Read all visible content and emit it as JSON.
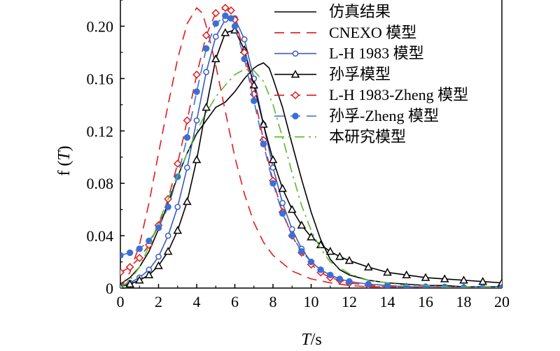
{
  "chart_data": {
    "type": "line",
    "xlabel": {
      "italic": "T",
      "rest": "/s"
    },
    "ylabel": {
      "pre": "f (",
      "italic": "T",
      "post": ")"
    },
    "xlim": [
      0,
      20
    ],
    "ylim": [
      0,
      0.22
    ],
    "xticks": [
      0,
      2,
      4,
      6,
      8,
      10,
      12,
      14,
      16,
      18,
      20
    ],
    "xtick_labels": [
      "0",
      "2",
      "4",
      "6",
      "8",
      "10",
      "12",
      "14",
      "16",
      "18",
      "20"
    ],
    "yticks": [
      0,
      0.04,
      0.08,
      0.12,
      0.16,
      0.2
    ],
    "ytick_labels": [
      "0",
      "0.04",
      "0.08",
      "0.12",
      "0.16",
      "0.20"
    ],
    "grid": false,
    "legend_position": "top-right",
    "series": [
      {
        "name": "仿真结果",
        "color": "#000000",
        "style": "solid",
        "marker": "none",
        "x": [
          0,
          0.5,
          1,
          1.5,
          2,
          2.5,
          3,
          3.5,
          4,
          4.5,
          5,
          5.5,
          6,
          6.5,
          7,
          7.2,
          7.5,
          7.8,
          8,
          8.5,
          9,
          9.5,
          10,
          10.5,
          11,
          11.5,
          12,
          13,
          14,
          15,
          16,
          17,
          18,
          19,
          20
        ],
        "y": [
          0.003,
          0.008,
          0.016,
          0.028,
          0.045,
          0.065,
          0.085,
          0.103,
          0.118,
          0.128,
          0.138,
          0.142,
          0.15,
          0.16,
          0.168,
          0.17,
          0.172,
          0.168,
          0.16,
          0.138,
          0.11,
          0.083,
          0.058,
          0.037,
          0.022,
          0.014,
          0.01,
          0.006,
          0.004,
          0.003,
          0.002,
          0.002,
          0.001,
          0.001,
          0.001
        ]
      },
      {
        "name": "CNEXO 模型",
        "color": "#e41a1c",
        "style": "dashed",
        "marker": "none",
        "x": [
          0,
          0.5,
          1,
          1.5,
          2,
          2.5,
          3,
          3.5,
          4,
          4.3,
          4.6,
          5,
          5.5,
          6,
          6.5,
          7,
          7.5,
          8,
          9,
          10,
          11,
          12,
          13,
          14,
          15,
          16,
          17,
          18,
          19,
          20
        ],
        "y": [
          0.0,
          0.012,
          0.033,
          0.065,
          0.103,
          0.14,
          0.175,
          0.202,
          0.214,
          0.21,
          0.195,
          0.17,
          0.135,
          0.1,
          0.072,
          0.05,
          0.035,
          0.025,
          0.013,
          0.007,
          0.004,
          0.002,
          0.001,
          0.001,
          0.0005,
          0.0003,
          0.0002,
          0.0001,
          0.0001,
          0.0
        ]
      },
      {
        "name": "L-H 1983 模型",
        "color": "#3b5bbf",
        "style": "solid",
        "marker": "circle-open",
        "x": [
          0,
          0.5,
          1,
          1.5,
          2,
          2.5,
          3,
          3.5,
          4,
          4.5,
          5,
          5.5,
          6,
          6.5,
          7,
          7.5,
          8,
          8.5,
          9,
          9.5,
          10,
          10.5,
          11,
          11.5,
          12,
          13,
          14,
          15,
          16,
          17,
          18,
          19,
          20
        ],
        "y": [
          0.002,
          0.004,
          0.008,
          0.014,
          0.024,
          0.04,
          0.062,
          0.092,
          0.128,
          0.165,
          0.192,
          0.205,
          0.206,
          0.19,
          0.16,
          0.125,
          0.092,
          0.065,
          0.045,
          0.03,
          0.02,
          0.014,
          0.01,
          0.007,
          0.005,
          0.003,
          0.002,
          0.001,
          0.001,
          0.001,
          0.0005,
          0.0003,
          0.0002
        ]
      },
      {
        "name": "孙孚模型",
        "color": "#000000",
        "style": "solid",
        "marker": "triangle-open",
        "x": [
          0,
          0.5,
          1,
          1.5,
          2,
          2.5,
          3,
          3.5,
          4,
          4.5,
          5,
          5.5,
          6,
          6.5,
          7,
          7.5,
          8,
          8.5,
          9,
          9.5,
          10,
          10.5,
          11,
          11.5,
          12,
          13,
          14,
          15,
          16,
          17,
          18,
          19,
          20
        ],
        "y": [
          0.001,
          0.003,
          0.006,
          0.01,
          0.017,
          0.028,
          0.044,
          0.066,
          0.098,
          0.138,
          0.175,
          0.195,
          0.197,
          0.182,
          0.155,
          0.125,
          0.098,
          0.076,
          0.06,
          0.048,
          0.039,
          0.033,
          0.028,
          0.024,
          0.021,
          0.016,
          0.012,
          0.01,
          0.008,
          0.007,
          0.006,
          0.005,
          0.004
        ]
      },
      {
        "name": "L-H 1983-Zheng 模型",
        "color": "#e41a1c",
        "style": "dashed",
        "marker": "diamond-open",
        "x": [
          0,
          0.5,
          1,
          1.5,
          2,
          2.5,
          3,
          3.5,
          4,
          4.5,
          5,
          5.5,
          5.8,
          6,
          6.5,
          7,
          7.5,
          8,
          8.5,
          9,
          9.5,
          10,
          10.5,
          11,
          11.5,
          12,
          13,
          14,
          15,
          16,
          17,
          18,
          19,
          20
        ],
        "y": [
          0.012,
          0.016,
          0.023,
          0.033,
          0.048,
          0.068,
          0.095,
          0.128,
          0.163,
          0.193,
          0.21,
          0.214,
          0.212,
          0.205,
          0.18,
          0.148,
          0.113,
          0.082,
          0.058,
          0.04,
          0.027,
          0.018,
          0.012,
          0.008,
          0.006,
          0.004,
          0.002,
          0.001,
          0.001,
          0.0005,
          0.0003,
          0.0002,
          0.0001,
          0.0001
        ]
      },
      {
        "name": "孙孚-Zheng 模型",
        "color": "#3b6fd4",
        "style": "dashed",
        "marker": "circle-filled",
        "x": [
          0,
          0.5,
          1,
          1.5,
          2,
          2.5,
          3,
          3.5,
          4,
          4.5,
          5,
          5.5,
          5.8,
          6,
          6.5,
          7,
          7.5,
          8,
          8.5,
          9,
          9.5,
          10,
          10.5,
          11,
          11.5,
          12,
          13,
          14,
          15,
          16,
          17,
          18,
          19,
          20
        ],
        "y": [
          0.025,
          0.027,
          0.03,
          0.036,
          0.046,
          0.062,
          0.085,
          0.115,
          0.15,
          0.183,
          0.202,
          0.208,
          0.206,
          0.2,
          0.175,
          0.143,
          0.11,
          0.08,
          0.057,
          0.04,
          0.028,
          0.02,
          0.014,
          0.01,
          0.007,
          0.005,
          0.003,
          0.002,
          0.001,
          0.001,
          0.0006,
          0.0004,
          0.0002,
          0.0001
        ]
      },
      {
        "name": "本研究模型",
        "color": "#5cb82e",
        "style": "dashdot",
        "marker": "none",
        "x": [
          0,
          0.5,
          1,
          1.5,
          2,
          2.5,
          3,
          3.5,
          4,
          4.5,
          5,
          5.5,
          6,
          6.5,
          7,
          7.5,
          8,
          8.5,
          9,
          9.5,
          10,
          10.5,
          11,
          12,
          13,
          14,
          15,
          16,
          17,
          18,
          19,
          20
        ],
        "y": [
          0.0,
          0.006,
          0.016,
          0.032,
          0.05,
          0.068,
          0.086,
          0.103,
          0.12,
          0.134,
          0.146,
          0.155,
          0.163,
          0.167,
          0.166,
          0.158,
          0.14,
          0.115,
          0.088,
          0.063,
          0.044,
          0.03,
          0.02,
          0.011,
          0.006,
          0.004,
          0.002,
          0.002,
          0.001,
          0.001,
          0.001,
          0.0005
        ]
      }
    ]
  }
}
